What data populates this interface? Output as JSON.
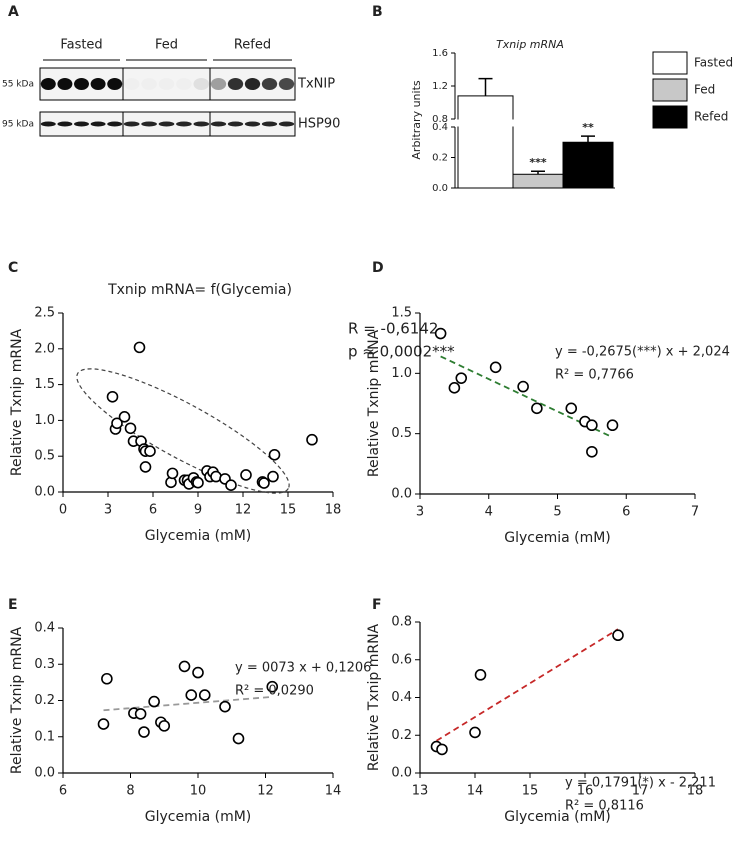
{
  "blot": {
    "panel": "A",
    "groups": [
      "Fasted",
      "Fed",
      "Refed"
    ],
    "rows": [
      {
        "marker": "55 kDa",
        "label": "TxNIP"
      },
      {
        "marker": "95 kDa",
        "label": "HSP90"
      }
    ]
  },
  "chart_data": [
    {
      "type": "bar",
      "panel": "B",
      "title": "Txnip mRNA",
      "ylabel": "Arbitrary units",
      "series": [
        {
          "name": "Fasted",
          "color": "#ffffff",
          "values": [
            1.08
          ],
          "errors": [
            0.21
          ],
          "annotation": null
        },
        {
          "name": "Fed",
          "color": "#c8c8c8",
          "values": [
            0.09
          ],
          "errors": [
            0.02
          ],
          "annotation": "***"
        },
        {
          "name": "Refed",
          "color": "#000000",
          "values": [
            0.3
          ],
          "errors": [
            0.04
          ],
          "annotation": "**"
        }
      ],
      "ylim_lower": [
        0,
        0.4
      ],
      "yticks_lower": [
        {
          "value": 0,
          "label": "0.0"
        },
        0.2,
        0.4
      ],
      "ylim_upper": [
        0.8,
        1.6
      ],
      "yticks_upper": [
        0.8,
        1.2,
        1.6
      ]
    },
    {
      "type": "scatter",
      "panel": "C",
      "title": "Txnip mRNA= f(Glycemia)",
      "xlabel": "Glycemia (mM)",
      "ylabel": "Relative Txnip mRNA",
      "x": [
        3.3,
        3.5,
        3.6,
        4.1,
        4.5,
        4.7,
        5.2,
        5.4,
        5.5,
        5.5,
        5.8,
        5.1,
        7.2,
        7.3,
        8.1,
        8.3,
        8.4,
        8.7,
        8.9,
        9.0,
        9.6,
        9.8,
        10.0,
        10.2,
        10.8,
        11.2,
        12.2,
        13.3,
        13.4,
        14.0,
        14.1,
        16.6
      ],
      "values": [
        1.33,
        0.88,
        0.96,
        1.05,
        0.89,
        0.71,
        0.71,
        0.6,
        0.57,
        0.35,
        0.57,
        2.02,
        0.135,
        0.26,
        0.165,
        0.163,
        0.113,
        0.197,
        0.14,
        0.13,
        0.294,
        0.215,
        0.277,
        0.215,
        0.183,
        0.095,
        0.238,
        0.14,
        0.125,
        0.215,
        0.52,
        0.73
      ],
      "xlim": [
        0,
        18
      ],
      "xticks": [
        0,
        3,
        6,
        9,
        12,
        15,
        18
      ],
      "ylim": [
        0,
        2.5
      ],
      "yticks": [
        {
          "value": 0,
          "label": "0.0"
        },
        0.5,
        {
          "value": 1,
          "label": "1.0"
        },
        1.5,
        {
          "value": 2,
          "label": "2.0"
        },
        2.5
      ],
      "annotations": [
        "R = -0,6142",
        "p ≈ 0,0002***"
      ]
    },
    {
      "type": "scatter",
      "panel": "D",
      "xlabel": "Glycemia (mM)",
      "ylabel": "Relative Txnip mRNA",
      "x": [
        3.3,
        3.5,
        3.6,
        4.1,
        4.5,
        4.7,
        5.2,
        5.4,
        5.5,
        5.5,
        5.8
      ],
      "values": [
        1.33,
        0.88,
        0.96,
        1.05,
        0.89,
        0.71,
        0.71,
        0.6,
        0.57,
        0.35,
        0.57
      ],
      "xlim": [
        3,
        7
      ],
      "xticks": [
        3,
        4,
        5,
        6,
        7
      ],
      "ylim": [
        0,
        1.5
      ],
      "yticks": [
        {
          "value": 0,
          "label": "0.0"
        },
        0.5,
        {
          "value": 1,
          "label": "1.0"
        },
        1.5
      ],
      "fit": {
        "x": [
          3.3,
          5.8
        ],
        "y": [
          1.14,
          0.47
        ],
        "color": "#2e7d32"
      },
      "annotations": [
        "y = -0,2675(***) x + 2,024",
        "R² = 0,7766"
      ]
    },
    {
      "type": "scatter",
      "panel": "E",
      "xlabel": "Glycemia (mM)",
      "ylabel": "Relative Txnip mRNA",
      "x": [
        7.2,
        7.3,
        8.1,
        8.3,
        8.4,
        8.7,
        8.9,
        9.0,
        9.6,
        9.8,
        10.0,
        10.2,
        10.8,
        11.2,
        12.2
      ],
      "values": [
        0.135,
        0.26,
        0.165,
        0.163,
        0.113,
        0.197,
        0.14,
        0.13,
        0.294,
        0.215,
        0.277,
        0.215,
        0.183,
        0.095,
        0.238
      ],
      "xlim": [
        6,
        14
      ],
      "xticks": [
        6,
        8,
        10,
        12,
        14
      ],
      "ylim": [
        0,
        0.4
      ],
      "yticks": [
        {
          "value": 0,
          "label": "0.0"
        },
        0.1,
        0.2,
        0.3,
        0.4
      ],
      "fit": {
        "x": [
          7.2,
          12.2
        ],
        "y": [
          0.173,
          0.21
        ],
        "color": "#999999"
      },
      "annotations": [
        "y = 0073 x + 0,1206",
        "R² = 0,0290"
      ]
    },
    {
      "type": "scatter",
      "panel": "F",
      "xlabel": "Glycemia (mM)",
      "ylabel": "Relative Txnip mRNA",
      "x": [
        13.3,
        13.4,
        14.0,
        14.1,
        16.6
      ],
      "values": [
        0.14,
        0.125,
        0.215,
        0.52,
        0.73
      ],
      "xlim": [
        13,
        18
      ],
      "xticks": [
        13,
        14,
        15,
        16,
        17,
        18
      ],
      "ylim": [
        0,
        0.8
      ],
      "yticks": [
        {
          "value": 0,
          "label": "0.0"
        },
        0.2,
        0.4,
        0.6,
        0.8
      ],
      "fit": {
        "x": [
          13.3,
          16.6
        ],
        "y": [
          0.171,
          0.762
        ],
        "color": "#c62828"
      },
      "annotations": [
        "y = 0,1791(*) x - 2,211",
        "R² = 0,8116"
      ]
    }
  ]
}
